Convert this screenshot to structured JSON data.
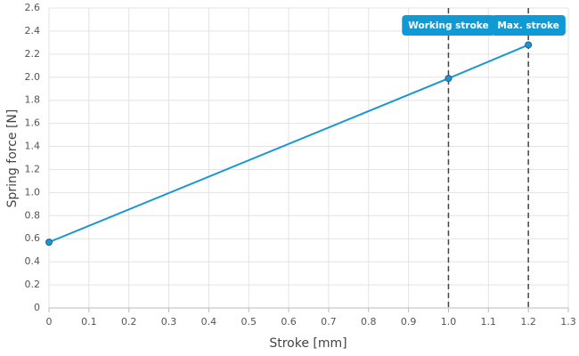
{
  "chart_data": {
    "type": "line",
    "x_label": "Stroke [mm]",
    "y_label": "Spring force [N]",
    "x": [
      0,
      1.0,
      1.2
    ],
    "series": [
      {
        "name": "Spring force",
        "color": "#1a96d4",
        "values": [
          0.57,
          1.99,
          2.28
        ]
      }
    ],
    "xlim": [
      0,
      1.3
    ],
    "xticks": [
      0,
      0.1,
      0.2,
      0.3,
      0.4,
      0.5,
      0.6,
      0.7,
      0.8,
      0.9,
      {
        "value": 1,
        "label": "1.0"
      },
      1.1,
      1.2,
      1.3
    ],
    "ylim": [
      0,
      2.6
    ],
    "yticks": [
      0,
      0.2,
      0.4,
      0.6,
      0.8,
      {
        "value": 1,
        "label": "1.0"
      },
      1.2,
      1.4,
      1.6,
      1.8,
      {
        "value": 2,
        "label": "2.0"
      },
      2.2,
      2.4,
      2.6
    ],
    "grid": true,
    "annotations": [
      {
        "x": 1.0,
        "label": "Working stroke"
      },
      {
        "x": 1.2,
        "label": "Max. stroke"
      }
    ],
    "annotation_color": "#0f9ad6"
  }
}
